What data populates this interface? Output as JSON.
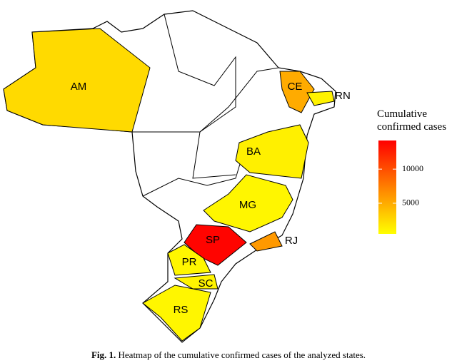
{
  "map": {
    "states": [
      {
        "label": "AM",
        "value": 2500
      },
      {
        "label": "CE",
        "value": 5000
      },
      {
        "label": "RN",
        "value": 1200
      },
      {
        "label": "BA",
        "value": 1300
      },
      {
        "label": "MG",
        "value": 1000
      },
      {
        "label": "SP",
        "value": 14000
      },
      {
        "label": "RJ",
        "value": 6000
      },
      {
        "label": "PR",
        "value": 1000
      },
      {
        "label": "SC",
        "value": 1100
      },
      {
        "label": "RS",
        "value": 1000
      }
    ],
    "legend": {
      "title": [
        "Cumulative",
        "confirmed cases"
      ],
      "lim": [
        500,
        14200
      ],
      "ticks": [
        10000,
        5000
      ],
      "colors": [
        "#ffff00",
        "#ff0000"
      ]
    }
  },
  "caption": {
    "label": "Fig. 1.",
    "text": "Heatmap of the cumulative confirmed cases of the analyzed states."
  }
}
